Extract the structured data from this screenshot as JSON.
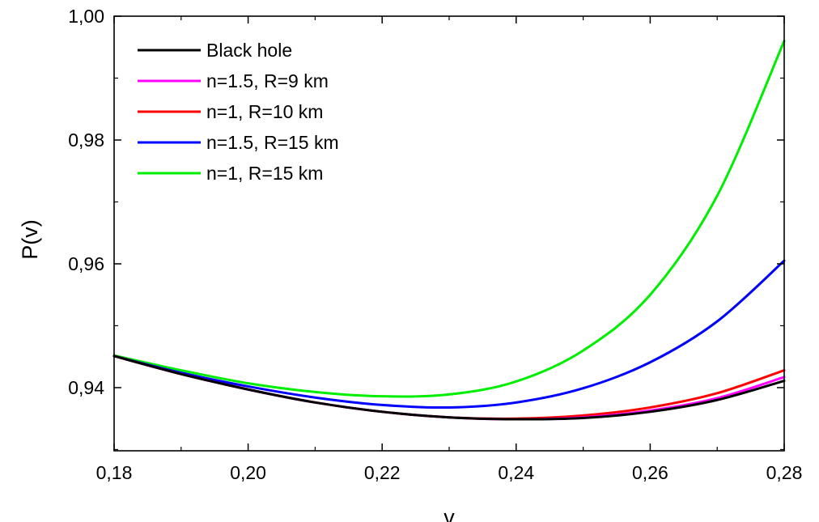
{
  "chart_data": {
    "type": "line",
    "title": "",
    "xlabel": "v",
    "ylabel": "P(v)",
    "xlim": [
      0.18,
      0.28
    ],
    "ylim": [
      0.9298,
      1.0
    ],
    "x_ticks": [
      0.18,
      0.2,
      0.22,
      0.24,
      0.26,
      0.28
    ],
    "x_tick_labels": [
      "0,18",
      "0,20",
      "0,22",
      "0,24",
      "0,26",
      "0,28"
    ],
    "y_ticks": [
      0.94,
      0.96,
      0.98,
      1.0
    ],
    "y_tick_labels": [
      "0,94",
      "0,96",
      "0,98",
      "1,00"
    ],
    "grid": false,
    "legend_position": "top-left",
    "x": [
      0.18,
      0.19,
      0.2,
      0.21,
      0.22,
      0.23,
      0.24,
      0.25,
      0.26,
      0.27,
      0.28
    ],
    "series": [
      {
        "name": "Black hole",
        "color": "#000000",
        "values": [
          0.9451,
          0.9422,
          0.9397,
          0.9376,
          0.9361,
          0.9352,
          0.9349,
          0.9351,
          0.9361,
          0.938,
          0.9411
        ]
      },
      {
        "name": "n=1.5, R=9 km",
        "color": "#ff00ff",
        "values": [
          0.9451,
          0.9422,
          0.9397,
          0.9376,
          0.9361,
          0.9352,
          0.9349,
          0.9352,
          0.9363,
          0.9383,
          0.9417
        ]
      },
      {
        "name": "n=1, R=10 km",
        "color": "#ff0000",
        "values": [
          0.9451,
          0.9422,
          0.9397,
          0.9376,
          0.9361,
          0.9352,
          0.935,
          0.9355,
          0.9368,
          0.9391,
          0.9428
        ]
      },
      {
        "name": "n=1.5, R=15 km",
        "color": "#0000ff",
        "values": [
          0.9451,
          0.9424,
          0.9402,
          0.9384,
          0.9372,
          0.9368,
          0.9376,
          0.9399,
          0.9441,
          0.9507,
          0.9605
        ]
      },
      {
        "name": "n=1, R=15 km",
        "color": "#00ee00",
        "values": [
          0.9452,
          0.9428,
          0.9407,
          0.9393,
          0.9386,
          0.9389,
          0.941,
          0.946,
          0.955,
          0.971,
          0.996
        ]
      }
    ]
  }
}
